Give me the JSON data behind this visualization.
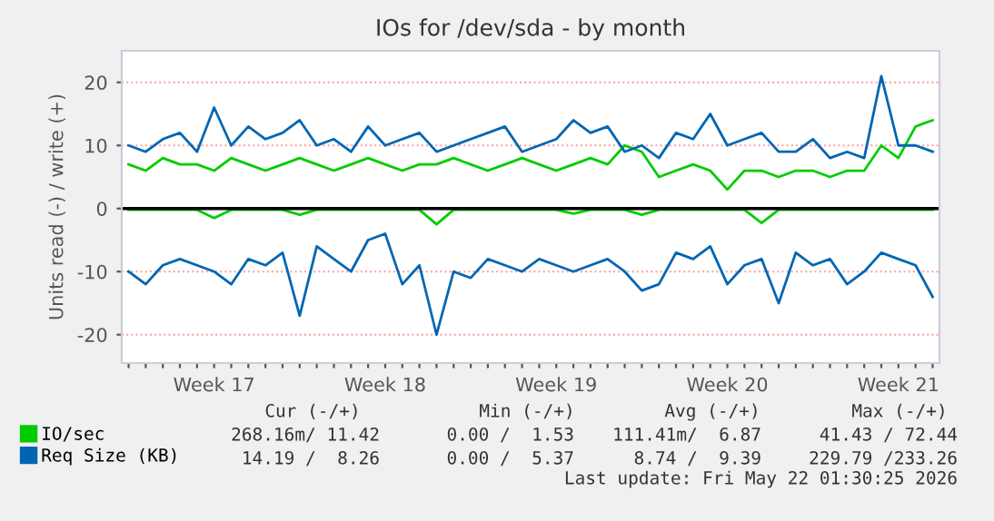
{
  "chart_data": {
    "type": "line",
    "title": "IOs for /dev/sda - by month",
    "ylabel": "Units read (-) / write (+)",
    "categories": [
      null,
      null,
      null,
      null,
      null,
      "Week 17",
      null,
      null,
      null,
      null,
      null,
      null,
      null,
      null,
      null,
      "Week 18",
      null,
      null,
      null,
      null,
      null,
      null,
      null,
      null,
      null,
      "Week 19",
      null,
      null,
      null,
      null,
      null,
      null,
      null,
      null,
      null,
      "Week 20",
      null,
      null,
      null,
      null,
      null,
      null,
      null,
      null,
      null,
      "Week 21",
      null,
      null
    ],
    "series": [
      {
        "name": "IO/sec",
        "color": "#00cc00",
        "values": [
          7,
          6,
          8,
          7,
          7,
          6,
          8,
          7,
          6,
          7,
          8,
          7,
          6,
          7,
          8,
          7,
          6,
          7,
          7,
          8,
          7,
          6,
          7,
          8,
          7,
          6,
          7,
          8,
          7,
          10,
          9,
          5,
          6,
          7,
          6,
          3,
          6,
          6,
          5,
          6,
          6,
          5,
          6,
          6,
          10,
          8,
          13,
          14
        ]
      },
      {
        "color": "#00cc00",
        "values": [
          -0.2,
          -0.2,
          -0.2,
          -0.2,
          -0.2,
          -1.5,
          -0.2,
          -0.2,
          -0.2,
          -0.2,
          -1.0,
          -0.2,
          -0.2,
          -0.2,
          -0.2,
          -0.2,
          -0.2,
          -0.2,
          -2.5,
          -0.2,
          -0.2,
          -0.2,
          -0.2,
          -0.2,
          -0.2,
          -0.2,
          -0.8,
          -0.2,
          -0.2,
          -0.2,
          -1.0,
          -0.2,
          -0.2,
          -0.2,
          -0.2,
          -0.2,
          -0.2,
          -2.3,
          -0.2,
          -0.2,
          -0.2,
          -0.2,
          -0.2,
          -0.2,
          -0.2,
          -0.2,
          -0.2,
          -0.2
        ]
      },
      {
        "name": "Req Size (KB)",
        "color": "#0066b3",
        "values": [
          10,
          9,
          11,
          12,
          9,
          16,
          10,
          13,
          11,
          12,
          14,
          10,
          11,
          9,
          13,
          10,
          11,
          12,
          9,
          10,
          11,
          12,
          13,
          9,
          10,
          11,
          14,
          12,
          13,
          9,
          10,
          8,
          12,
          11,
          15,
          10,
          11,
          12,
          9,
          9,
          11,
          8,
          9,
          8,
          21,
          10,
          10,
          9
        ]
      },
      {
        "color": "#0066b3",
        "values": [
          -10,
          -12,
          -9,
          -8,
          -9,
          -10,
          -12,
          -8,
          -9,
          -7,
          -17,
          -6,
          -8,
          -10,
          -5,
          -4,
          -12,
          -9,
          -20,
          -10,
          -11,
          -8,
          -9,
          -10,
          -8,
          -9,
          -10,
          -9,
          -8,
          -10,
          -13,
          -12,
          -7,
          -8,
          -6,
          -12,
          -9,
          -8,
          -15,
          -7,
          -9,
          -8,
          -12,
          -10,
          -7,
          -8,
          -9,
          -14
        ]
      }
    ],
    "ylim": [
      -24.5,
      25
    ],
    "yticks": [
      -20,
      -10,
      0,
      10,
      20
    ],
    "ref_lines": [
      {
        "axis": "y",
        "value": 0,
        "label": null,
        "color": "#000000"
      }
    ],
    "grid": "y",
    "legend": "bottom left",
    "annotations": [
      "Cur (-/+)",
      "Min (-/+)",
      "Avg (-/+)",
      "Max (-/+)",
      "268.16m/ 11.42",
      "0.00 /  1.53",
      "111.41m/  6.87",
      "41.43 / 72.44",
      "14.19 /  8.26",
      "0.00 /  5.37",
      "8.74 /  9.39",
      "229.79 /233.26",
      "Last update: Fri May 22 01:30:25 2026"
    ]
  }
}
